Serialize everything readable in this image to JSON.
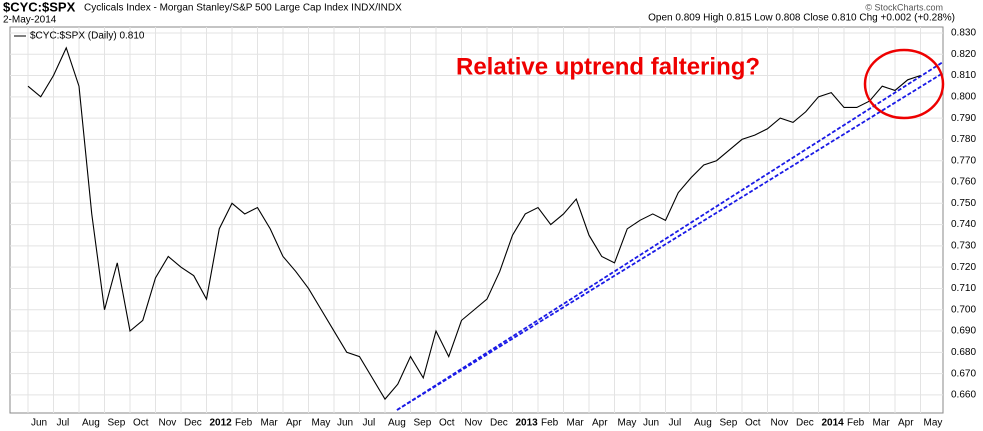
{
  "chart_data": {
    "type": "line",
    "title": "$CYC:$SPX",
    "subtitle": "Cyclicals Index - Morgan Stanley/S&P 500 Large Cap Index INDX/INDX",
    "date": "2-May-2014",
    "quote": "Open 0.809 High 0.815 Low 0.808 Close 0.810 Chg +0.002 (+0.28%)",
    "source": "© StockCharts.com",
    "annotation": "Relative uptrend faltering?",
    "categories": [
      "Jun",
      null,
      "Jul",
      null,
      "Aug",
      null,
      "Sep",
      null,
      "Oct",
      null,
      "Nov",
      null,
      "Dec",
      null,
      "2012",
      null,
      "Feb",
      null,
      "Mar",
      null,
      "Apr",
      null,
      "May",
      null,
      "Jun",
      null,
      "Jul",
      null,
      "Aug",
      null,
      "Sep",
      null,
      "Oct",
      null,
      "Nov",
      null,
      "Dec",
      null,
      "2013",
      null,
      "Feb",
      null,
      "Mar",
      null,
      "Apr",
      null,
      "May",
      null,
      "Jun",
      null,
      "Jul",
      null,
      "Aug",
      null,
      "Sep",
      null,
      "Oct",
      null,
      "Nov",
      null,
      "Dec",
      null,
      "2014",
      null,
      "Feb",
      null,
      "Mar",
      null,
      "Apr",
      null,
      "May"
    ],
    "series": [
      {
        "name": "$CYC:$SPX (Daily) 0.810",
        "color": "#000000",
        "values": [
          0.805,
          0.8,
          0.81,
          0.823,
          0.805,
          0.745,
          0.7,
          0.722,
          0.69,
          0.695,
          0.715,
          0.725,
          0.72,
          0.716,
          0.705,
          0.738,
          0.75,
          0.745,
          0.748,
          0.738,
          0.725,
          0.718,
          0.71,
          0.7,
          0.69,
          0.68,
          0.678,
          0.668,
          0.658,
          0.665,
          0.678,
          0.668,
          0.69,
          0.678,
          0.695,
          0.7,
          0.705,
          0.718,
          0.735,
          0.745,
          0.748,
          0.74,
          0.745,
          0.752,
          0.735,
          0.725,
          0.722,
          0.738,
          0.742,
          0.745,
          0.742,
          0.755,
          0.762,
          0.768,
          0.77,
          0.775,
          0.78,
          0.782,
          0.785,
          0.79,
          0.788,
          0.793,
          0.8,
          0.802,
          0.795,
          0.795,
          0.798,
          0.805,
          0.803,
          0.808,
          0.81
        ]
      }
    ],
    "ylim": [
      0.6515,
      0.8328
    ],
    "yticks": [
      {
        "value": 0.66,
        "label": "0.660"
      },
      {
        "value": 0.67,
        "label": "0.670"
      },
      {
        "value": 0.68,
        "label": "0.680"
      },
      {
        "value": 0.69,
        "label": "0.690"
      },
      {
        "value": 0.7,
        "label": "0.700"
      },
      {
        "value": 0.71,
        "label": "0.710"
      },
      {
        "value": 0.72,
        "label": "0.720"
      },
      {
        "value": 0.73,
        "label": "0.730"
      },
      {
        "value": 0.74,
        "label": "0.740"
      },
      {
        "value": 0.75,
        "label": "0.750"
      },
      {
        "value": 0.76,
        "label": "0.760"
      },
      {
        "value": 0.77,
        "label": "0.770"
      },
      {
        "value": 0.78,
        "label": "0.780"
      },
      {
        "value": 0.79,
        "label": "0.790"
      },
      {
        "value": 0.8,
        "label": "0.800"
      },
      {
        "value": 0.81,
        "label": "0.810"
      },
      {
        "value": 0.82,
        "label": "0.820"
      },
      {
        "value": 0.83,
        "label": "0.830"
      }
    ],
    "grid": true
  }
}
